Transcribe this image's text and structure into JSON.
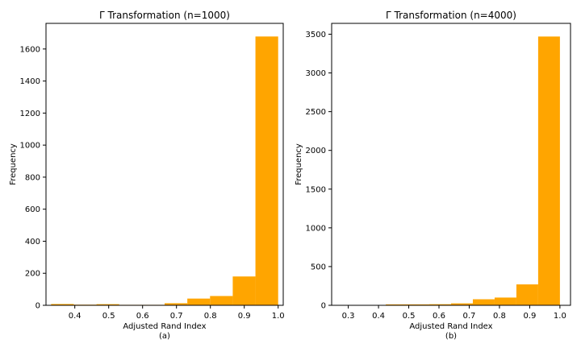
{
  "chart_data": [
    {
      "type": "bar",
      "title": "Γ Transformation (n=1000)",
      "xlabel": "Adjusted Rand Index",
      "sublabel": "(a)",
      "ylabel": "Frequency",
      "bar_color": "#ffa500",
      "xlim": [
        0.315,
        1.015
      ],
      "ylim": [
        0,
        1760
      ],
      "xticks": [
        0.4,
        0.5,
        0.6,
        0.7,
        0.8,
        0.9,
        1.0
      ],
      "xtick_labels": [
        "0.4",
        "0.5",
        "0.6",
        "0.7",
        "0.8",
        "0.9",
        "1.0"
      ],
      "yticks": [
        0,
        200,
        400,
        600,
        800,
        1000,
        1200,
        1400,
        1600
      ],
      "ytick_labels": [
        "0",
        "200",
        "400",
        "600",
        "800",
        "1000",
        "1200",
        "1400",
        "1600"
      ],
      "bin_edges": [
        0.33,
        0.397,
        0.464,
        0.531,
        0.598,
        0.665,
        0.732,
        0.799,
        0.866,
        0.933,
        1.0
      ],
      "values": [
        8,
        4,
        7,
        3,
        3,
        13,
        42,
        58,
        180,
        1678
      ]
    },
    {
      "type": "bar",
      "title": "Γ Transformation  (n=4000)",
      "xlabel": "Adjusted Rand Index",
      "sublabel": "(b)",
      "ylabel": "Frequency",
      "bar_color": "#ffa500",
      "xlim": [
        0.245,
        1.035
      ],
      "ylim": [
        0,
        3640
      ],
      "xticks": [
        0.3,
        0.4,
        0.5,
        0.6,
        0.7,
        0.8,
        0.9,
        1.0
      ],
      "xtick_labels": [
        "0.3",
        "0.4",
        "0.5",
        "0.6",
        "0.7",
        "0.8",
        "0.9",
        "1.0"
      ],
      "yticks": [
        0,
        500,
        1000,
        1500,
        2000,
        2500,
        3000,
        3500
      ],
      "ytick_labels": [
        "0",
        "500",
        "1000",
        "1500",
        "2000",
        "2500",
        "3000",
        "3500"
      ],
      "bin_edges": [
        0.28,
        0.352,
        0.424,
        0.496,
        0.568,
        0.64,
        0.712,
        0.784,
        0.856,
        0.928,
        1.0
      ],
      "values": [
        5,
        5,
        12,
        12,
        14,
        25,
        78,
        100,
        270,
        3470
      ]
    }
  ]
}
